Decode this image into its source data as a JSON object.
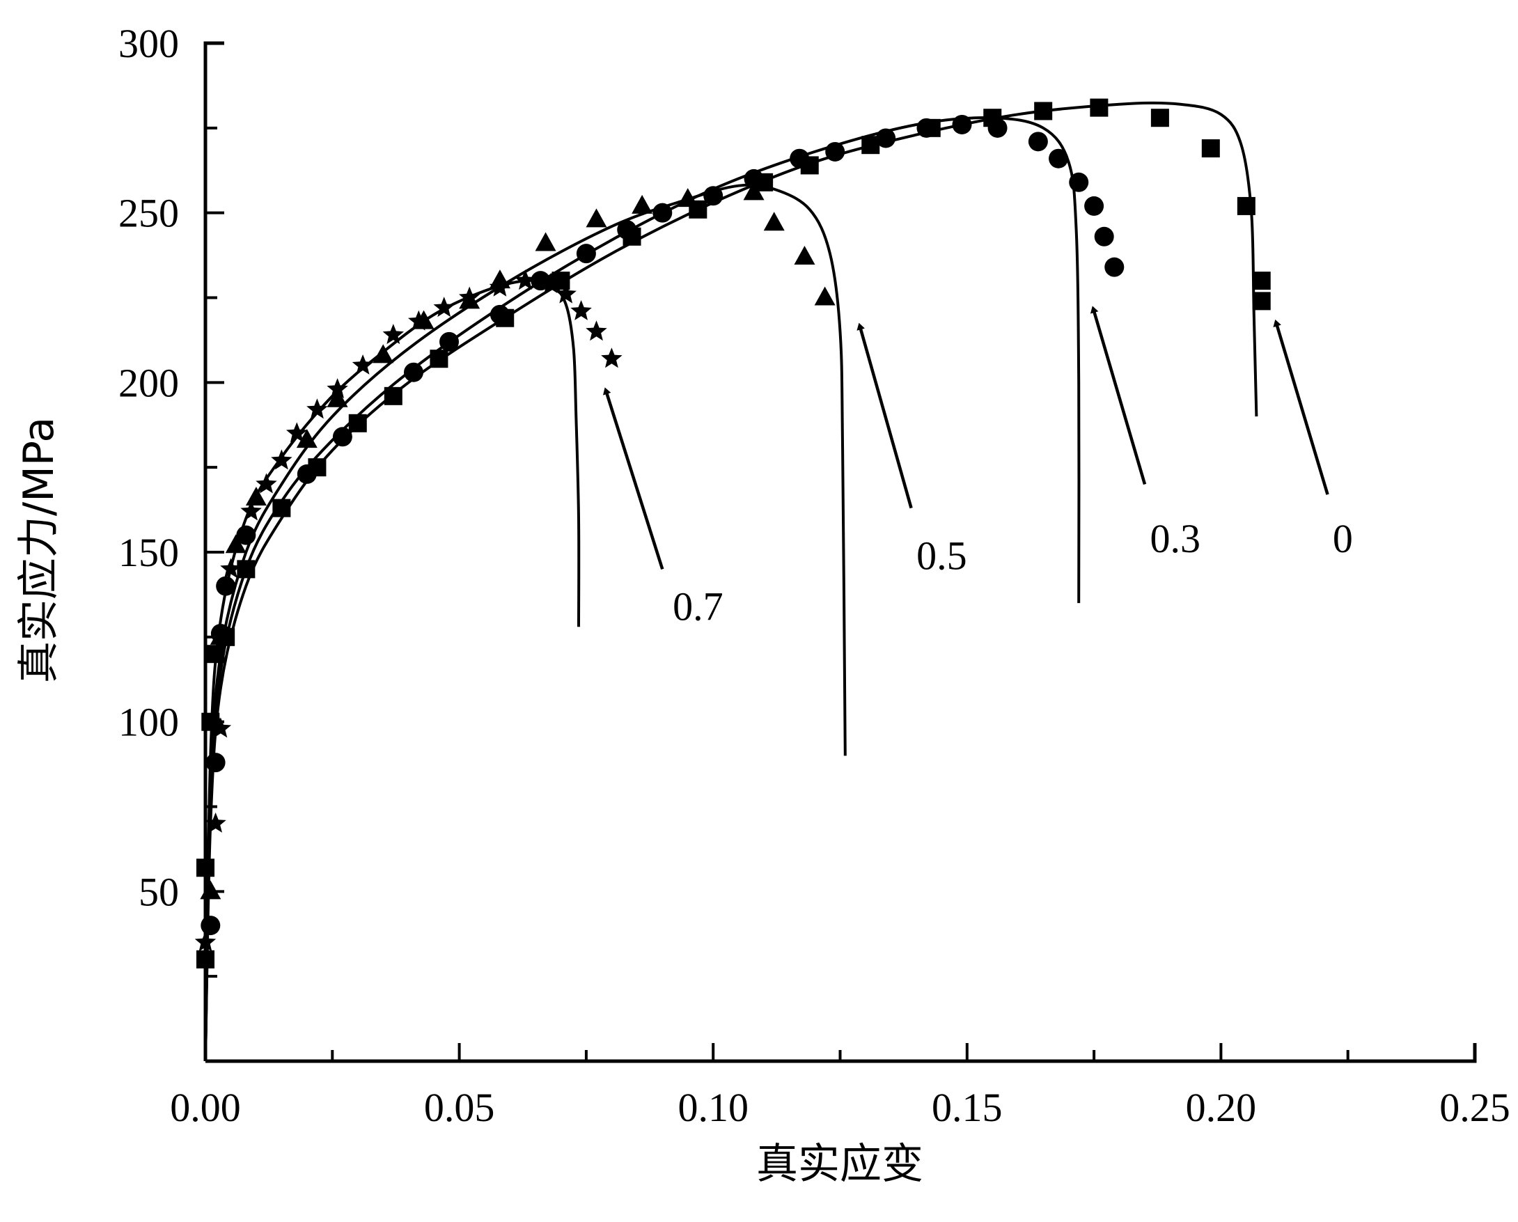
{
  "chart_data": {
    "type": "scatter",
    "xlabel": "真实应变",
    "ylabel": "真实应力/MPa",
    "xlim": [
      0,
      0.25
    ],
    "ylim": [
      0,
      300
    ],
    "xticks": [
      "0.00",
      "0.05",
      "0.10",
      "0.15",
      "0.20",
      "0.25"
    ],
    "yticks": [
      "50",
      "100",
      "150",
      "200",
      "250",
      "300"
    ],
    "grid": false,
    "series": [
      {
        "name": "0",
        "marker": "square",
        "points": [
          [
            0.0,
            30
          ],
          [
            0.0,
            57
          ],
          [
            0.001,
            100
          ],
          [
            0.002,
            120
          ],
          [
            0.004,
            125
          ],
          [
            0.008,
            145
          ],
          [
            0.015,
            163
          ],
          [
            0.022,
            175
          ],
          [
            0.03,
            188
          ],
          [
            0.037,
            196
          ],
          [
            0.046,
            207
          ],
          [
            0.059,
            219
          ],
          [
            0.07,
            230
          ],
          [
            0.084,
            243
          ],
          [
            0.097,
            251
          ],
          [
            0.11,
            259
          ],
          [
            0.119,
            264
          ],
          [
            0.131,
            270
          ],
          [
            0.143,
            275
          ],
          [
            0.155,
            278
          ],
          [
            0.165,
            280
          ],
          [
            0.176,
            281
          ],
          [
            0.188,
            278
          ],
          [
            0.198,
            269
          ],
          [
            0.205,
            252
          ],
          [
            0.208,
            230
          ],
          [
            0.208,
            224
          ]
        ]
      },
      {
        "name": "0.3",
        "marker": "circle",
        "points": [
          [
            0.001,
            40
          ],
          [
            0.002,
            88
          ],
          [
            0.003,
            126
          ],
          [
            0.004,
            140
          ],
          [
            0.008,
            155
          ],
          [
            0.02,
            173
          ],
          [
            0.027,
            184
          ],
          [
            0.041,
            203
          ],
          [
            0.048,
            212
          ],
          [
            0.058,
            220
          ],
          [
            0.066,
            230
          ],
          [
            0.075,
            238
          ],
          [
            0.083,
            245
          ],
          [
            0.09,
            250
          ],
          [
            0.1,
            255
          ],
          [
            0.108,
            260
          ],
          [
            0.117,
            266
          ],
          [
            0.124,
            268
          ],
          [
            0.134,
            272
          ],
          [
            0.142,
            275
          ],
          [
            0.149,
            276
          ],
          [
            0.156,
            275
          ],
          [
            0.164,
            271
          ],
          [
            0.168,
            266
          ],
          [
            0.172,
            259
          ],
          [
            0.175,
            252
          ],
          [
            0.177,
            243
          ],
          [
            0.179,
            234
          ]
        ]
      },
      {
        "name": "0.5",
        "marker": "triangle",
        "points": [
          [
            0.001,
            50
          ],
          [
            0.002,
            100
          ],
          [
            0.003,
            125
          ],
          [
            0.006,
            152
          ],
          [
            0.01,
            166
          ],
          [
            0.02,
            183
          ],
          [
            0.026,
            195
          ],
          [
            0.035,
            208
          ],
          [
            0.043,
            218
          ],
          [
            0.052,
            224
          ],
          [
            0.058,
            230
          ],
          [
            0.067,
            241
          ],
          [
            0.077,
            248
          ],
          [
            0.086,
            252
          ],
          [
            0.095,
            254
          ],
          [
            0.108,
            256
          ],
          [
            0.112,
            247
          ],
          [
            0.118,
            237
          ],
          [
            0.122,
            225
          ]
        ]
      },
      {
        "name": "0.7",
        "marker": "star",
        "points": [
          [
            0.0,
            35
          ],
          [
            0.002,
            70
          ],
          [
            0.003,
            98
          ],
          [
            0.005,
            145
          ],
          [
            0.009,
            162
          ],
          [
            0.012,
            170
          ],
          [
            0.015,
            177
          ],
          [
            0.018,
            185
          ],
          [
            0.022,
            192
          ],
          [
            0.026,
            198
          ],
          [
            0.031,
            205
          ],
          [
            0.037,
            214
          ],
          [
            0.042,
            218
          ],
          [
            0.047,
            222
          ],
          [
            0.052,
            225
          ],
          [
            0.058,
            228
          ],
          [
            0.063,
            230
          ],
          [
            0.068,
            229
          ],
          [
            0.071,
            226
          ],
          [
            0.074,
            221
          ],
          [
            0.077,
            215
          ],
          [
            0.08,
            207
          ]
        ]
      }
    ],
    "fit_curves": [
      {
        "name": "0",
        "points": [
          [
            0.0,
            0
          ],
          [
            0.001,
            70
          ],
          [
            0.003,
            110
          ],
          [
            0.008,
            140
          ],
          [
            0.015,
            160
          ],
          [
            0.025,
            180
          ],
          [
            0.04,
            200
          ],
          [
            0.06,
            220
          ],
          [
            0.08,
            238
          ],
          [
            0.1,
            253
          ],
          [
            0.12,
            265
          ],
          [
            0.14,
            273
          ],
          [
            0.16,
            279
          ],
          [
            0.18,
            282
          ],
          [
            0.192,
            282
          ],
          [
            0.2,
            279
          ],
          [
            0.204,
            270
          ],
          [
            0.206,
            250
          ],
          [
            0.2065,
            220
          ],
          [
            0.207,
            190
          ]
        ]
      },
      {
        "name": "0.3",
        "points": [
          [
            0.0,
            0
          ],
          [
            0.001,
            75
          ],
          [
            0.003,
            115
          ],
          [
            0.008,
            145
          ],
          [
            0.015,
            165
          ],
          [
            0.025,
            183
          ],
          [
            0.04,
            203
          ],
          [
            0.06,
            224
          ],
          [
            0.08,
            242
          ],
          [
            0.1,
            257
          ],
          [
            0.12,
            268
          ],
          [
            0.14,
            276
          ],
          [
            0.155,
            278
          ],
          [
            0.165,
            275
          ],
          [
            0.17,
            265
          ],
          [
            0.1715,
            245
          ],
          [
            0.172,
            200
          ],
          [
            0.172,
            135
          ]
        ]
      },
      {
        "name": "0.5",
        "points": [
          [
            0.0,
            0
          ],
          [
            0.001,
            80
          ],
          [
            0.003,
            120
          ],
          [
            0.008,
            150
          ],
          [
            0.015,
            170
          ],
          [
            0.025,
            190
          ],
          [
            0.04,
            210
          ],
          [
            0.06,
            230
          ],
          [
            0.08,
            246
          ],
          [
            0.095,
            254
          ],
          [
            0.105,
            258
          ],
          [
            0.112,
            257
          ],
          [
            0.119,
            251
          ],
          [
            0.123,
            238
          ],
          [
            0.125,
            215
          ],
          [
            0.1255,
            180
          ],
          [
            0.126,
            90
          ]
        ]
      },
      {
        "name": "0.7",
        "points": [
          [
            0.0,
            0
          ],
          [
            0.001,
            90
          ],
          [
            0.003,
            130
          ],
          [
            0.008,
            160
          ],
          [
            0.015,
            178
          ],
          [
            0.025,
            196
          ],
          [
            0.035,
            209
          ],
          [
            0.045,
            220
          ],
          [
            0.055,
            227
          ],
          [
            0.063,
            230
          ],
          [
            0.068,
            229
          ],
          [
            0.071,
            223
          ],
          [
            0.0725,
            210
          ],
          [
            0.073,
            190
          ],
          [
            0.0735,
            160
          ],
          [
            0.0735,
            128
          ]
        ]
      }
    ],
    "annotations": [
      {
        "label": "0",
        "text_at": [
          0.224,
          150
        ],
        "arrow_from": [
          0.221,
          167
        ],
        "arrow_to": [
          0.211,
          217
        ]
      },
      {
        "label": "0.3",
        "text_at": [
          0.191,
          150
        ],
        "arrow_from": [
          0.185,
          170
        ],
        "arrow_to": [
          0.175,
          221
        ]
      },
      {
        "label": "0.5",
        "text_at": [
          0.145,
          145
        ],
        "arrow_from": [
          0.139,
          163
        ],
        "arrow_to": [
          0.129,
          216
        ]
      },
      {
        "label": "0.7",
        "text_at": [
          0.097,
          130
        ],
        "arrow_from": [
          0.09,
          145
        ],
        "arrow_to": [
          0.079,
          197
        ]
      }
    ]
  }
}
